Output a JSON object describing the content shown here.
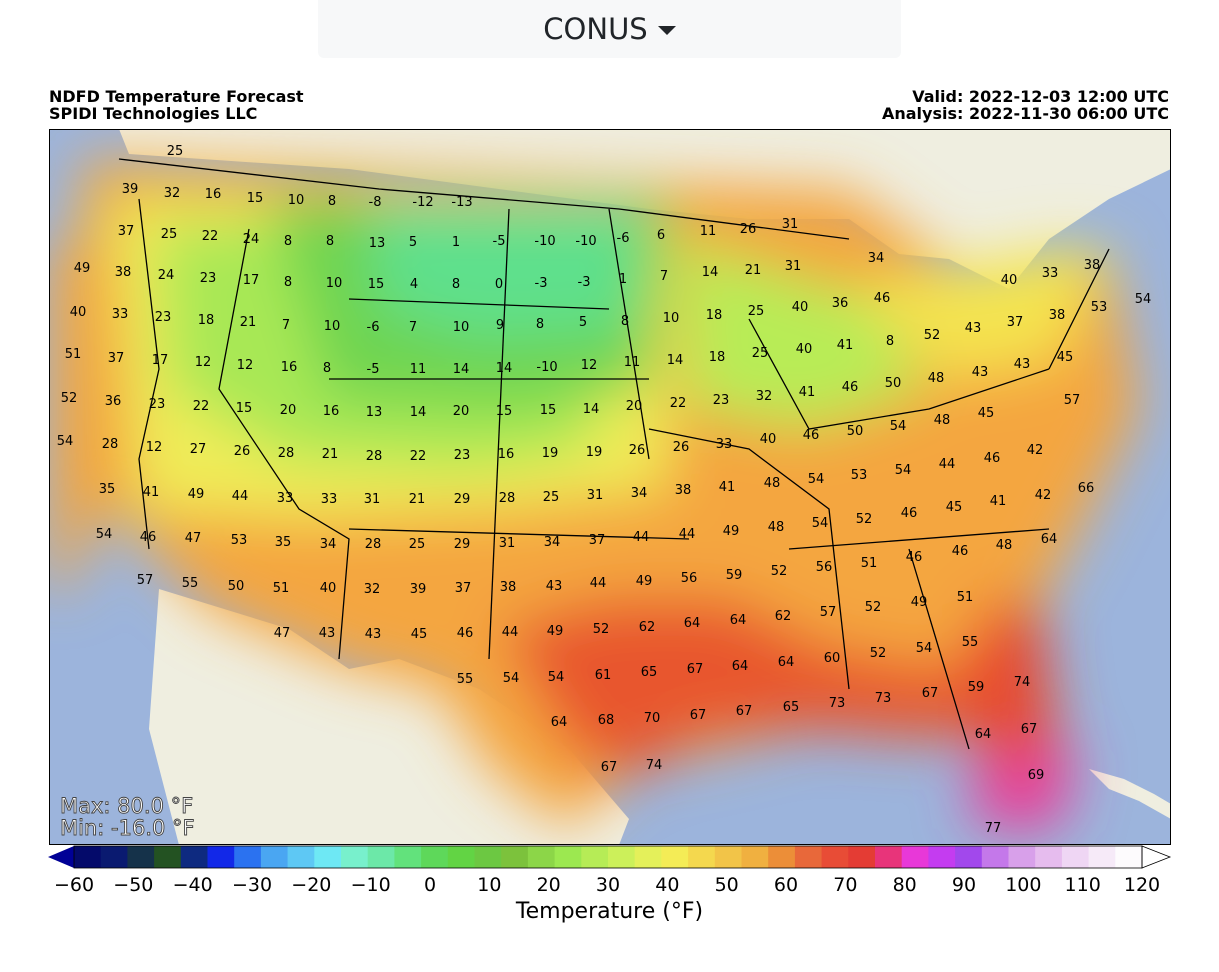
{
  "selector": {
    "label": "CONUS"
  },
  "header": {
    "title": "NDFD Temperature Forecast",
    "company": "SPIDI Technologies LLC",
    "valid": "Valid: 2022-12-03 12:00 UTC",
    "analysis": "Analysis: 2022-11-30 06:00 UTC"
  },
  "stats": {
    "max": "Max: 80.0 °F",
    "min": "Min: -16.0 °F"
  },
  "colorbar": {
    "title": "Temperature (°F)",
    "ticks": [
      "−60",
      "−50",
      "−40",
      "−30",
      "−20",
      "−10",
      "0",
      "10",
      "20",
      "30",
      "40",
      "50",
      "60",
      "70",
      "80",
      "90",
      "100",
      "110",
      "120"
    ],
    "colors": [
      "#040a6a",
      "#0a1a70",
      "#15324a",
      "#235222",
      "#0e2a80",
      "#1228e8",
      "#2b72f0",
      "#4aa6f2",
      "#5ec8f4",
      "#6ee8f4",
      "#78f0cc",
      "#6ce8a8",
      "#62e27c",
      "#5ed85a",
      "#62d444",
      "#6cc842",
      "#7cc23c",
      "#8cd648",
      "#9ce850",
      "#b6ec56",
      "#ccf05a",
      "#e4f05a",
      "#f4ec56",
      "#f4d84e",
      "#f2c448",
      "#f0b040",
      "#ec8e38",
      "#e8683a",
      "#e84c36",
      "#e43c34",
      "#e8347a",
      "#e838d8",
      "#c43cf0",
      "#a248ec",
      "#c478ea",
      "#d8a0ea",
      "#e6bcee",
      "#efd6f4",
      "#f6eaf8",
      "#fdfbfd"
    ],
    "below_color": "#000096",
    "above_color": "#ffffff"
  },
  "map": {
    "land_color": "#efeee0",
    "water_color": "#9cb4dc",
    "labels": [
      [
        "25",
        175,
        150
      ],
      [
        "39",
        130,
        188
      ],
      [
        "32",
        172,
        192
      ],
      [
        "16",
        213,
        193
      ],
      [
        "15",
        255,
        197
      ],
      [
        "10",
        296,
        199
      ],
      [
        "8",
        332,
        200
      ],
      [
        "-8",
        375,
        201
      ],
      [
        "-12",
        423,
        201
      ],
      [
        "-13",
        462,
        201
      ],
      [
        "37",
        126,
        230
      ],
      [
        "25",
        169,
        233
      ],
      [
        "22",
        210,
        235
      ],
      [
        "24",
        251,
        238
      ],
      [
        "8",
        288,
        240
      ],
      [
        "8",
        330,
        240
      ],
      [
        "13",
        377,
        242
      ],
      [
        "5",
        413,
        241
      ],
      [
        "1",
        456,
        241
      ],
      [
        "-5",
        499,
        240
      ],
      [
        "-10",
        545,
        240
      ],
      [
        "-10",
        586,
        240
      ],
      [
        "-6",
        623,
        237
      ],
      [
        "6",
        661,
        234
      ],
      [
        "11",
        708,
        230
      ],
      [
        "26",
        748,
        228
      ],
      [
        "31",
        790,
        223
      ],
      [
        "49",
        82,
        267
      ],
      [
        "38",
        123,
        271
      ],
      [
        "24",
        166,
        274
      ],
      [
        "23",
        208,
        277
      ],
      [
        "17",
        251,
        279
      ],
      [
        "8",
        288,
        281
      ],
      [
        "10",
        334,
        282
      ],
      [
        "15",
        376,
        283
      ],
      [
        "4",
        414,
        283
      ],
      [
        "8",
        456,
        283
      ],
      [
        "0",
        499,
        283
      ],
      [
        "-3",
        541,
        282
      ],
      [
        "-3",
        584,
        281
      ],
      [
        "1",
        623,
        278
      ],
      [
        "7",
        664,
        275
      ],
      [
        "14",
        710,
        271
      ],
      [
        "21",
        753,
        269
      ],
      [
        "31",
        793,
        265
      ],
      [
        "34",
        876,
        257
      ],
      [
        "40",
        78,
        311
      ],
      [
        "33",
        120,
        313
      ],
      [
        "23",
        163,
        316
      ],
      [
        "18",
        206,
        319
      ],
      [
        "21",
        248,
        321
      ],
      [
        "7",
        286,
        324
      ],
      [
        "10",
        332,
        325
      ],
      [
        "-6",
        373,
        326
      ],
      [
        "7",
        413,
        326
      ],
      [
        "10",
        461,
        326
      ],
      [
        "9",
        500,
        324
      ],
      [
        "8",
        540,
        323
      ],
      [
        "5",
        583,
        321
      ],
      [
        "8",
        625,
        320
      ],
      [
        "10",
        671,
        317
      ],
      [
        "18",
        714,
        314
      ],
      [
        "25",
        756,
        310
      ],
      [
        "40",
        800,
        306
      ],
      [
        "36",
        840,
        302
      ],
      [
        "46",
        882,
        297
      ],
      [
        "40",
        1009,
        279
      ],
      [
        "33",
        1050,
        272
      ],
      [
        "38",
        1092,
        264
      ],
      [
        "54",
        1143,
        298
      ],
      [
        "51",
        73,
        353
      ],
      [
        "37",
        116,
        357
      ],
      [
        "17",
        160,
        359
      ],
      [
        "12",
        203,
        361
      ],
      [
        "12",
        245,
        364
      ],
      [
        "16",
        289,
        366
      ],
      [
        "8",
        327,
        367
      ],
      [
        "-5",
        373,
        368
      ],
      [
        "11",
        418,
        368
      ],
      [
        "14",
        461,
        368
      ],
      [
        "14",
        504,
        367
      ],
      [
        "-10",
        547,
        366
      ],
      [
        "12",
        589,
        364
      ],
      [
        "11",
        632,
        361
      ],
      [
        "14",
        675,
        359
      ],
      [
        "18",
        717,
        356
      ],
      [
        "25",
        760,
        352
      ],
      [
        "40",
        804,
        348
      ],
      [
        "41",
        845,
        344
      ],
      [
        "8",
        890,
        340
      ],
      [
        "52",
        932,
        334
      ],
      [
        "43",
        973,
        327
      ],
      [
        "37",
        1015,
        321
      ],
      [
        "38",
        1057,
        314
      ],
      [
        "53",
        1099,
        306
      ],
      [
        "52",
        69,
        397
      ],
      [
        "36",
        113,
        400
      ],
      [
        "23",
        157,
        403
      ],
      [
        "22",
        201,
        405
      ],
      [
        "15",
        244,
        407
      ],
      [
        "20",
        288,
        409
      ],
      [
        "16",
        331,
        410
      ],
      [
        "13",
        374,
        411
      ],
      [
        "14",
        418,
        411
      ],
      [
        "20",
        461,
        410
      ],
      [
        "15",
        504,
        410
      ],
      [
        "15",
        548,
        409
      ],
      [
        "14",
        591,
        408
      ],
      [
        "20",
        634,
        405
      ],
      [
        "22",
        678,
        402
      ],
      [
        "23",
        721,
        399
      ],
      [
        "32",
        764,
        395
      ],
      [
        "41",
        807,
        391
      ],
      [
        "46",
        850,
        386
      ],
      [
        "50",
        893,
        382
      ],
      [
        "48",
        936,
        377
      ],
      [
        "43",
        980,
        371
      ],
      [
        "43",
        1022,
        363
      ],
      [
        "45",
        1065,
        356
      ],
      [
        "57",
        1072,
        399
      ],
      [
        "54",
        65,
        440
      ],
      [
        "28",
        110,
        443
      ],
      [
        "12",
        154,
        446
      ],
      [
        "27",
        198,
        448
      ],
      [
        "26",
        242,
        450
      ],
      [
        "28",
        286,
        452
      ],
      [
        "21",
        330,
        453
      ],
      [
        "28",
        374,
        455
      ],
      [
        "22",
        418,
        455
      ],
      [
        "23",
        462,
        454
      ],
      [
        "16",
        506,
        453
      ],
      [
        "19",
        550,
        452
      ],
      [
        "19",
        594,
        451
      ],
      [
        "26",
        637,
        449
      ],
      [
        "26",
        681,
        446
      ],
      [
        "33",
        724,
        443
      ],
      [
        "40",
        768,
        438
      ],
      [
        "46",
        811,
        434
      ],
      [
        "50",
        855,
        430
      ],
      [
        "54",
        898,
        425
      ],
      [
        "48",
        942,
        419
      ],
      [
        "45",
        986,
        412
      ],
      [
        "42",
        1035,
        449
      ],
      [
        "35",
        107,
        488
      ],
      [
        "41",
        151,
        491
      ],
      [
        "49",
        196,
        493
      ],
      [
        "44",
        240,
        495
      ],
      [
        "33",
        285,
        497
      ],
      [
        "33",
        329,
        498
      ],
      [
        "31",
        372,
        498
      ],
      [
        "21",
        417,
        498
      ],
      [
        "29",
        462,
        498
      ],
      [
        "28",
        507,
        497
      ],
      [
        "25",
        551,
        496
      ],
      [
        "31",
        595,
        494
      ],
      [
        "34",
        639,
        492
      ],
      [
        "38",
        683,
        489
      ],
      [
        "41",
        727,
        486
      ],
      [
        "48",
        772,
        482
      ],
      [
        "54",
        816,
        478
      ],
      [
        "53",
        859,
        474
      ],
      [
        "54",
        903,
        469
      ],
      [
        "44",
        947,
        463
      ],
      [
        "46",
        992,
        457
      ],
      [
        "41",
        998,
        500
      ],
      [
        "42",
        1043,
        494
      ],
      [
        "66",
        1086,
        487
      ],
      [
        "54",
        104,
        533
      ],
      [
        "46",
        148,
        536
      ],
      [
        "47",
        193,
        537
      ],
      [
        "53",
        239,
        539
      ],
      [
        "35",
        283,
        541
      ],
      [
        "34",
        328,
        543
      ],
      [
        "28",
        373,
        543
      ],
      [
        "25",
        417,
        543
      ],
      [
        "29",
        462,
        543
      ],
      [
        "31",
        507,
        542
      ],
      [
        "34",
        552,
        541
      ],
      [
        "37",
        597,
        539
      ],
      [
        "44",
        641,
        536
      ],
      [
        "44",
        687,
        533
      ],
      [
        "49",
        731,
        530
      ],
      [
        "48",
        776,
        526
      ],
      [
        "54",
        820,
        522
      ],
      [
        "52",
        864,
        518
      ],
      [
        "46",
        909,
        512
      ],
      [
        "45",
        954,
        506
      ],
      [
        "48",
        1004,
        544
      ],
      [
        "64",
        1049,
        538
      ],
      [
        "57",
        145,
        579
      ],
      [
        "55",
        190,
        582
      ],
      [
        "50",
        236,
        585
      ],
      [
        "51",
        281,
        587
      ],
      [
        "40",
        328,
        587
      ],
      [
        "32",
        372,
        588
      ],
      [
        "39",
        418,
        588
      ],
      [
        "37",
        463,
        587
      ],
      [
        "38",
        508,
        586
      ],
      [
        "43",
        554,
        585
      ],
      [
        "44",
        598,
        582
      ],
      [
        "49",
        644,
        580
      ],
      [
        "56",
        689,
        577
      ],
      [
        "59",
        734,
        574
      ],
      [
        "52",
        779,
        570
      ],
      [
        "56",
        824,
        566
      ],
      [
        "51",
        869,
        562
      ],
      [
        "46",
        914,
        556
      ],
      [
        "46",
        960,
        550
      ],
      [
        "47",
        282,
        632
      ],
      [
        "43",
        327,
        632
      ],
      [
        "43",
        373,
        633
      ],
      [
        "45",
        419,
        633
      ],
      [
        "46",
        465,
        632
      ],
      [
        "44",
        510,
        631
      ],
      [
        "49",
        555,
        630
      ],
      [
        "52",
        601,
        628
      ],
      [
        "62",
        647,
        626
      ],
      [
        "64",
        692,
        622
      ],
      [
        "64",
        738,
        619
      ],
      [
        "62",
        783,
        615
      ],
      [
        "57",
        828,
        611
      ],
      [
        "52",
        873,
        606
      ],
      [
        "49",
        919,
        601
      ],
      [
        "51",
        965,
        596
      ],
      [
        "55",
        465,
        678
      ],
      [
        "54",
        511,
        677
      ],
      [
        "54",
        556,
        676
      ],
      [
        "61",
        603,
        674
      ],
      [
        "65",
        649,
        671
      ],
      [
        "67",
        695,
        668
      ],
      [
        "64",
        740,
        665
      ],
      [
        "64",
        786,
        661
      ],
      [
        "60",
        832,
        657
      ],
      [
        "52",
        878,
        652
      ],
      [
        "54",
        924,
        647
      ],
      [
        "55",
        970,
        641
      ],
      [
        "64",
        559,
        721
      ],
      [
        "68",
        606,
        719
      ],
      [
        "70",
        652,
        717
      ],
      [
        "67",
        698,
        714
      ],
      [
        "67",
        744,
        710
      ],
      [
        "65",
        791,
        706
      ],
      [
        "73",
        837,
        702
      ],
      [
        "73",
        883,
        697
      ],
      [
        "67",
        930,
        692
      ],
      [
        "59",
        976,
        686
      ],
      [
        "74",
        1022,
        681
      ],
      [
        "64",
        983,
        733
      ],
      [
        "67",
        1029,
        728
      ],
      [
        "67",
        609,
        766
      ],
      [
        "74",
        654,
        764
      ],
      [
        "69",
        1036,
        774
      ],
      [
        "77",
        993,
        827
      ]
    ]
  }
}
